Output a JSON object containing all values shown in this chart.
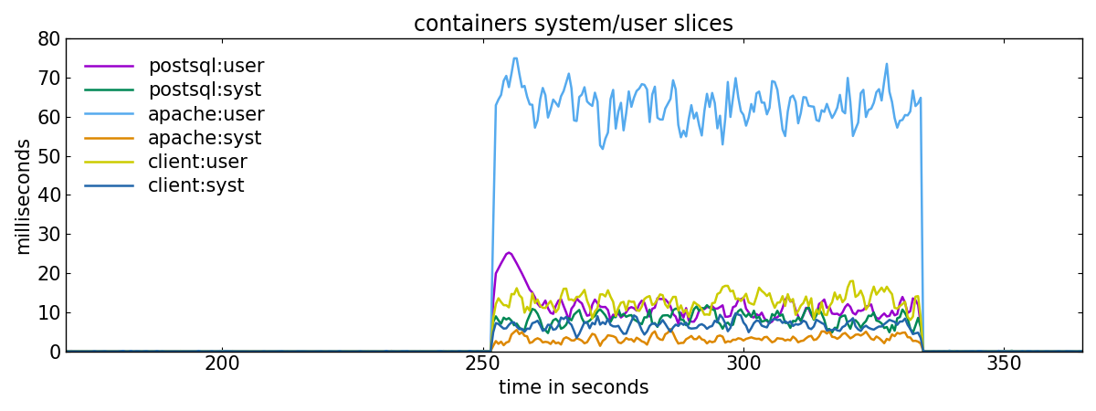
{
  "title": "containers system/user slices",
  "xlabel": "time in seconds",
  "ylabel": "milliseconds",
  "xlim": [
    170,
    365
  ],
  "ylim": [
    0,
    80
  ],
  "xticks": [
    200,
    250,
    300,
    350
  ],
  "yticks": [
    0,
    10,
    20,
    30,
    40,
    50,
    60,
    70,
    80
  ],
  "series": [
    {
      "label": "postsql:user",
      "color": "#9900cc",
      "lw": 1.8
    },
    {
      "label": "postsql:syst",
      "color": "#008855",
      "lw": 1.8
    },
    {
      "label": "apache:user",
      "color": "#55aaee",
      "lw": 1.8
    },
    {
      "label": "apache:syst",
      "color": "#dd8800",
      "lw": 1.8
    },
    {
      "label": "client:user",
      "color": "#cccc00",
      "lw": 1.8
    },
    {
      "label": "client:syst",
      "color": "#2266aa",
      "lw": 1.8
    }
  ],
  "t_start": 170,
  "t_end": 365,
  "load_start": 252,
  "load_end": 334,
  "background_color": "#ffffff",
  "legend_fontsize": 15,
  "title_fontsize": 17,
  "tick_fontsize": 15,
  "label_fontsize": 15
}
